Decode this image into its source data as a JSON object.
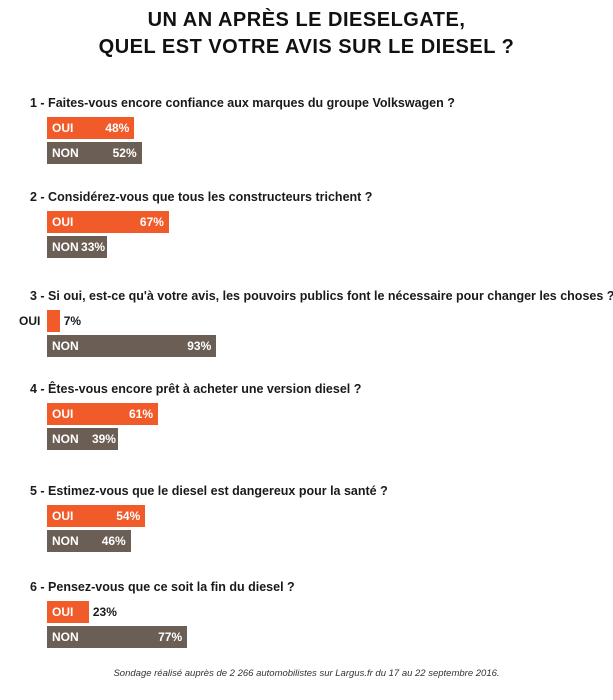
{
  "title_line1": "UN AN APRÈS LE DIESELGATE,",
  "title_line2": "QUEL EST VOTRE AVIS SUR LE DIESEL ?",
  "footer": "Sondage réalisé auprès de 2 266 automobilistes sur Largus.fr du 17 au 22 septembre 2016.",
  "colors": {
    "oui": "#f15a29",
    "non": "#6b5e55"
  },
  "chart_data": {
    "type": "bar",
    "orientation": "horizontal",
    "questions": [
      {
        "label": "1 - Faites-vous encore confiance aux marques du groupe Volkswagen ?",
        "bars": [
          {
            "name": "OUI",
            "value": 48,
            "text": "48%"
          },
          {
            "name": "NON",
            "value": 52,
            "text": "52%"
          }
        ]
      },
      {
        "label": "2 - Considérez-vous que tous les constructeurs trichent ?",
        "bars": [
          {
            "name": "OUI",
            "value": 67,
            "text": "67%"
          },
          {
            "name": "NON",
            "value": 33,
            "text": "33%"
          }
        ]
      },
      {
        "label": "3 - Si oui, est-ce qu'à votre avis, les pouvoirs publics font le nécessaire pour changer les choses ?",
        "bars": [
          {
            "name": "OUI",
            "value": 7,
            "text": "7%"
          },
          {
            "name": "NON",
            "value": 93,
            "text": "93%"
          }
        ]
      },
      {
        "label": "4 - Êtes-vous encore prêt à acheter une version diesel ?",
        "bars": [
          {
            "name": "OUI",
            "value": 61,
            "text": "61%"
          },
          {
            "name": "NON",
            "value": 39,
            "text": "39%"
          }
        ]
      },
      {
        "label": "5 - Estimez-vous que le diesel est dangereux pour la santé ?",
        "bars": [
          {
            "name": "OUI",
            "value": 54,
            "text": "54%"
          },
          {
            "name": "NON",
            "value": 46,
            "text": "46%"
          }
        ]
      },
      {
        "label": "6 - Pensez-vous que ce soit la fin du diesel ?",
        "bars": [
          {
            "name": "OUI",
            "value": 23,
            "text": "23%"
          },
          {
            "name": "NON",
            "value": 77,
            "text": "77%"
          }
        ]
      }
    ]
  }
}
